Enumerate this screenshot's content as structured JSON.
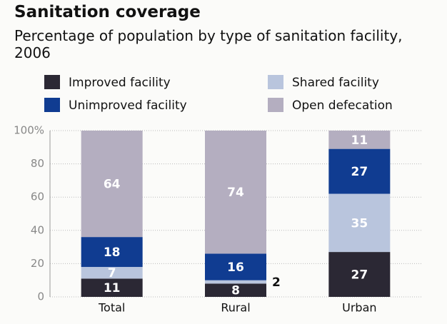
{
  "chart_data": {
    "type": "stacked-bar",
    "title": "Sanitation coverage",
    "subtitle": "Percentage of population by type of sanitation facility, 2006",
    "categories": [
      "Total",
      "Rural",
      "Urban"
    ],
    "series": [
      {
        "name": "Improved facility",
        "color": "#2b2834",
        "values": [
          11,
          8,
          27
        ]
      },
      {
        "name": "Shared facility",
        "color": "#b9c5dd",
        "values": [
          7,
          2,
          35
        ]
      },
      {
        "name": "Unimproved facility",
        "color": "#103c91",
        "values": [
          18,
          16,
          27
        ]
      },
      {
        "name": "Open defecation",
        "color": "#b4aec0",
        "values": [
          64,
          74,
          11
        ]
      }
    ],
    "ylim": [
      0,
      100
    ],
    "yticks": [
      0,
      20,
      40,
      60,
      80,
      {
        "value": 100,
        "label": "100%"
      }
    ],
    "grid": true
  }
}
